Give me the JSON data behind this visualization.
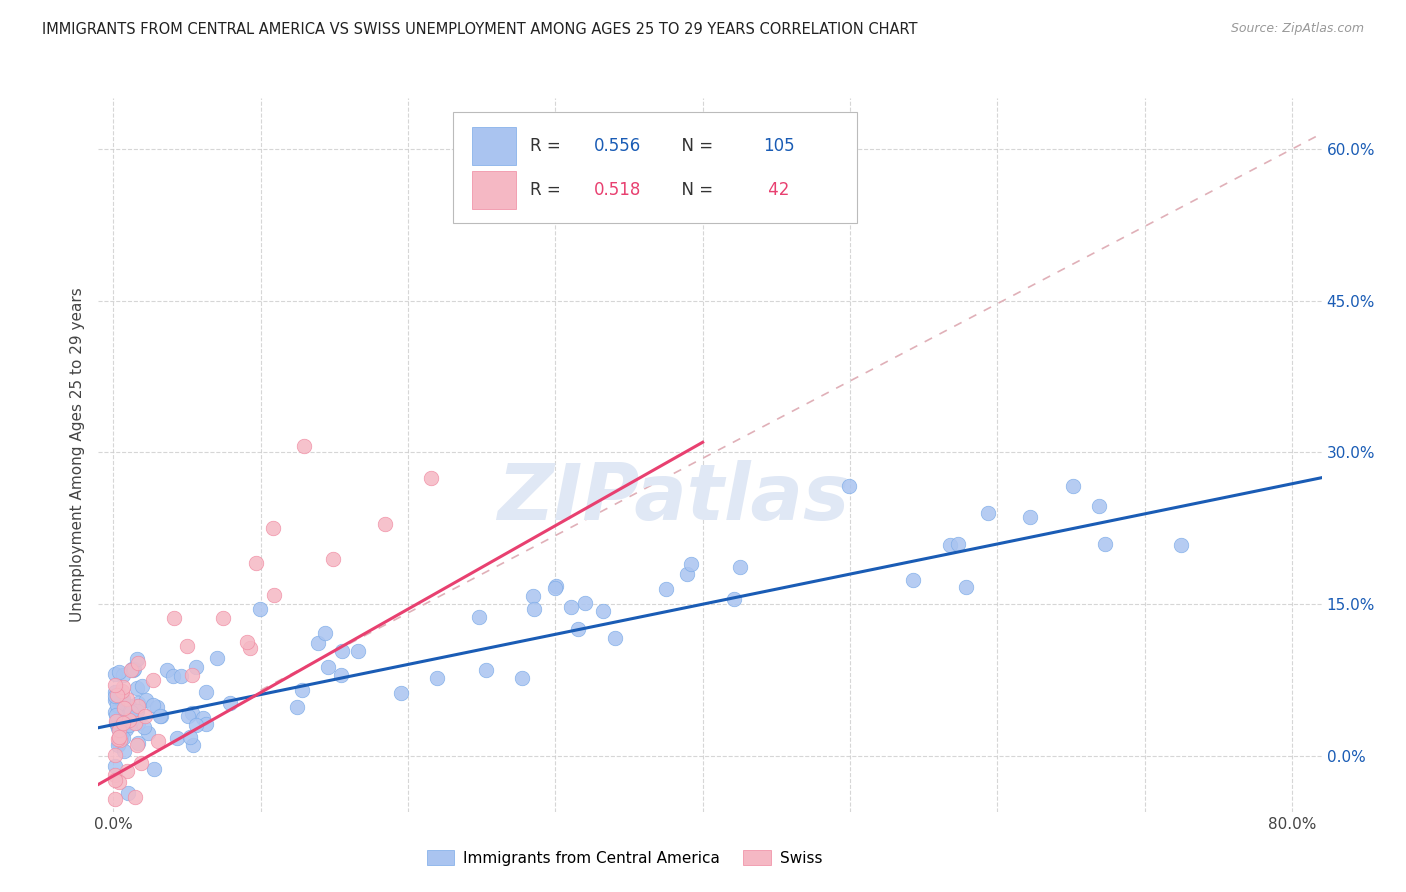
{
  "title": "IMMIGRANTS FROM CENTRAL AMERICA VS SWISS UNEMPLOYMENT AMONG AGES 25 TO 29 YEARS CORRELATION CHART",
  "source": "Source: ZipAtlas.com",
  "ylabel": "Unemployment Among Ages 25 to 29 years",
  "xlim": [
    -0.01,
    0.82
  ],
  "ylim": [
    -0.055,
    0.65
  ],
  "xtick_positions": [
    0.0,
    0.1,
    0.2,
    0.3,
    0.4,
    0.5,
    0.6,
    0.7,
    0.8
  ],
  "xticklabels": [
    "0.0%",
    "",
    "",
    "",
    "",
    "",
    "",
    "",
    "80.0%"
  ],
  "ytick_positions": [
    0.0,
    0.15,
    0.3,
    0.45,
    0.6
  ],
  "ytick_labels_right": [
    "0.0%",
    "15.0%",
    "30.0%",
    "45.0%",
    "60.0%"
  ],
  "background_color": "#ffffff",
  "grid_color": "#cccccc",
  "watermark_text": "ZIPatlas",
  "series1_color": "#aac4f0",
  "series1_edge": "#7aaae8",
  "series2_color": "#f5b8c4",
  "series2_edge": "#f088a0",
  "trendline1_color": "#1a5cb5",
  "trendline2_color": "#e84070",
  "trendline_dashed_color": "#e0b0b8",
  "legend_r1_val": "0.556",
  "legend_n1_val": "105",
  "legend_r2_val": "0.518",
  "legend_n2_val": " 42",
  "legend_color_blue": "#1a5cb5",
  "legend_color_pink": "#e84070",
  "trendline1_x0": -0.01,
  "trendline1_x1": 0.82,
  "trendline1_y0": 0.028,
  "trendline1_y1": 0.275,
  "trendline2_x0": -0.01,
  "trendline2_x1": 0.4,
  "trendline2_y0": -0.028,
  "trendline2_y1": 0.31,
  "trendline_dashed_x0": 0.1,
  "trendline_dashed_x1": 0.82,
  "trendline_dashed_y0": 0.065,
  "trendline_dashed_y1": 0.615
}
